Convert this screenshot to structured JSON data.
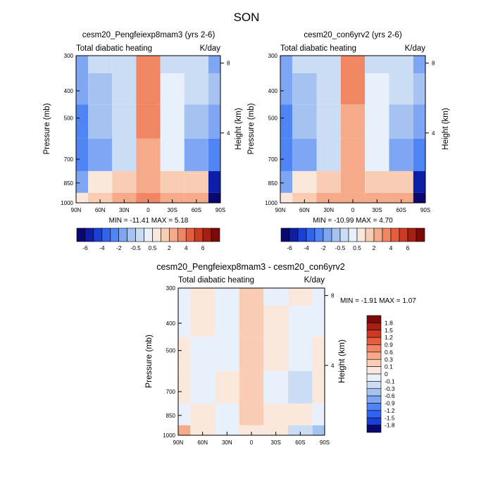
{
  "figure": {
    "title": "SON"
  },
  "panels": [
    {
      "title": "cesm20_Pengfeiexp8mam3 (yrs 2-6)",
      "left_label": "Total diabatic heating",
      "right_label": "K/day",
      "ylabel": "Pressure (mb)",
      "ylabel_right": "Height (km)",
      "min_max": "MIN = -11.41  MAX =   5.18"
    },
    {
      "title": "cesm20_con6yrv2 (yrs 2-6)",
      "left_label": "Total diabatic heating",
      "right_label": "K/day",
      "ylabel": "Pressure (mb)",
      "ylabel_right": "Height (km)",
      "min_max": "MIN = -10.99  MAX =   4.70"
    },
    {
      "title": "cesm20_Pengfeiexp8mam3 - cesm20_con6yrv2",
      "left_label": "Total diabatic heating",
      "right_label": "K/day",
      "ylabel": "Pressure (mb)",
      "ylabel_right": "Height (km)",
      "min_max": "MIN =  -1.91  MAX =   1.07"
    }
  ],
  "axes": {
    "x_ticks": [
      "90N",
      "60N",
      "30N",
      "0",
      "30S",
      "60S",
      "90S"
    ],
    "y_ticks": [
      "300",
      "400",
      "500",
      "700",
      "850",
      "1000"
    ],
    "y_tick_values": [
      300,
      400,
      500,
      700,
      850,
      1000
    ],
    "height_ticks": [
      "8",
      "4"
    ],
    "height_tick_values": [
      8,
      4
    ]
  },
  "colorbars": {
    "main": {
      "labels": [
        "-6",
        "-4",
        "-2",
        "-0.5",
        "0.5",
        "2",
        "4",
        "6"
      ],
      "colors": [
        "#08086e",
        "#0d1fa8",
        "#1a3fd6",
        "#2f63f0",
        "#4f84f5",
        "#7ea6f3",
        "#a5c2f0",
        "#cbdcf5",
        "#e8f0fb",
        "#fbe8dc",
        "#f9cdb3",
        "#f5aa89",
        "#f08663",
        "#e65c3e",
        "#cd3a22",
        "#a81e12",
        "#7c0a06"
      ]
    },
    "diff": {
      "labels": [
        "1.8",
        "1.5",
        "1.2",
        "0.9",
        "0.6",
        "0.3",
        "0.1",
        "0",
        "-0.1",
        "-0.3",
        "-0.6",
        "-0.9",
        "-1.2",
        "-1.5",
        "-1.8"
      ],
      "colors": [
        "#7c0a06",
        "#a81e12",
        "#cd3a22",
        "#e65c3e",
        "#f08663",
        "#f5aa89",
        "#f9cdb3",
        "#fbe8dc",
        "#e8f0fb",
        "#cbdcf5",
        "#a5c2f0",
        "#7ea6f3",
        "#4f84f5",
        "#2f63f0",
        "#1a3fd6",
        "#08086e"
      ]
    }
  },
  "chart_data": [
    {
      "type": "heatmap",
      "title": "cesm20_Pengfeiexp8mam3 (yrs 2-6)",
      "variable": "Total diabatic heating",
      "units": "K/day",
      "xlabel": "",
      "ylabel": "Pressure (mb)",
      "x": [
        "90N",
        "60N",
        "30N",
        "0",
        "30S",
        "60S",
        "90S"
      ],
      "y": [
        300,
        400,
        500,
        700,
        850,
        1000
      ],
      "y_scale": "log",
      "min": -11.41,
      "max": 5.18,
      "z": [
        [
          -1.5,
          -0.5,
          -0.5,
          3.0,
          -0.3,
          -0.5,
          -1.5
        ],
        [
          -2.0,
          -0.8,
          -0.5,
          3.5,
          0.3,
          -0.5,
          -1.0
        ],
        [
          -2.5,
          -1.0,
          -0.3,
          3.0,
          0.3,
          -1.0,
          -2.0
        ],
        [
          -3.0,
          -1.5,
          -0.3,
          2.5,
          0.1,
          -1.5,
          -3.0
        ],
        [
          -1.5,
          0.8,
          1.0,
          2.5,
          1.0,
          1.5,
          -6.0
        ],
        [
          0.5,
          1.5,
          2.0,
          3.0,
          2.0,
          2.5,
          -8.0
        ]
      ]
    },
    {
      "type": "heatmap",
      "title": "cesm20_con6yrv2 (yrs 2-6)",
      "variable": "Total diabatic heating",
      "units": "K/day",
      "xlabel": "",
      "ylabel": "Pressure (mb)",
      "x": [
        "90N",
        "60N",
        "30N",
        "0",
        "30S",
        "60S",
        "90S"
      ],
      "y": [
        300,
        400,
        500,
        700,
        850,
        1000
      ],
      "y_scale": "log",
      "min": -10.99,
      "max": 4.7,
      "z": [
        [
          -1.5,
          -0.5,
          -0.5,
          3.0,
          -0.3,
          -0.5,
          -1.5
        ],
        [
          -2.0,
          -0.8,
          -0.5,
          3.2,
          0.3,
          -0.5,
          -1.0
        ],
        [
          -2.5,
          -1.0,
          -0.3,
          2.8,
          0.3,
          -1.0,
          -2.0
        ],
        [
          -3.0,
          -1.5,
          -0.3,
          2.3,
          0.1,
          -1.5,
          -3.0
        ],
        [
          -1.5,
          0.8,
          1.0,
          2.3,
          1.0,
          1.5,
          -6.0
        ],
        [
          0.5,
          1.5,
          2.0,
          2.8,
          2.0,
          2.5,
          -8.0
        ]
      ]
    },
    {
      "type": "heatmap",
      "title": "cesm20_Pengfeiexp8mam3 - cesm20_con6yrv2",
      "variable": "Total diabatic heating",
      "units": "K/day",
      "xlabel": "",
      "ylabel": "Pressure (mb)",
      "x": [
        "90N",
        "60N",
        "30N",
        "0",
        "30S",
        "60S",
        "90S"
      ],
      "y": [
        300,
        400,
        500,
        700,
        850,
        1000
      ],
      "y_scale": "log",
      "min": -1.91,
      "max": 1.07,
      "z": [
        [
          -0.1,
          0.05,
          -0.1,
          0.1,
          -0.05,
          0.05,
          -0.1
        ],
        [
          -0.1,
          0.05,
          -0.1,
          0.1,
          0.05,
          -0.05,
          -0.1
        ],
        [
          0.05,
          -0.1,
          -0.1,
          0.1,
          0.05,
          -0.1,
          0.05
        ],
        [
          0.05,
          -0.1,
          0.05,
          0.1,
          -0.1,
          -0.3,
          0.05
        ],
        [
          -0.1,
          0.05,
          -0.1,
          0.1,
          0.05,
          0.05,
          -0.1
        ],
        [
          0.3,
          0.05,
          -0.1,
          0.05,
          0.05,
          -0.3,
          -0.6
        ]
      ]
    }
  ]
}
